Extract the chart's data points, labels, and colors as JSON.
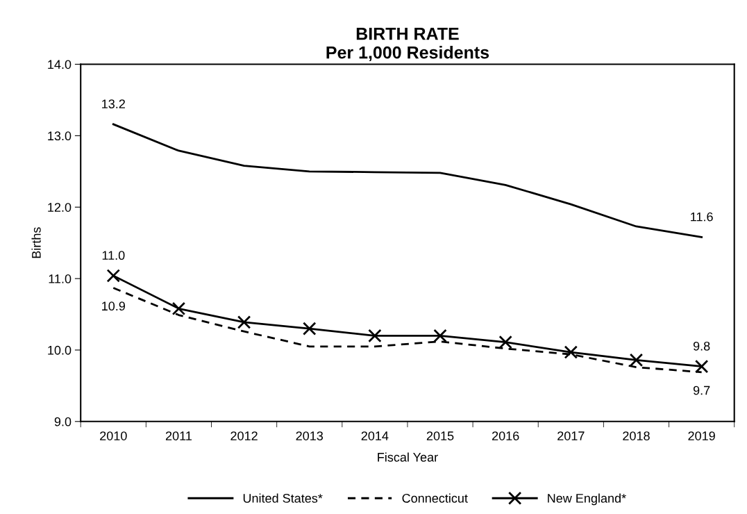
{
  "chart_data": {
    "type": "line",
    "title": "BIRTH RATE\nPer 1,000 Residents",
    "xlabel": "Fiscal Year",
    "ylabel": "Births",
    "categories": [
      "2010",
      "2011",
      "2012",
      "2013",
      "2014",
      "2015",
      "2016",
      "2017",
      "2018",
      "2019"
    ],
    "series": [
      {
        "name": "United States*",
        "color": "#000000",
        "line_style": "solid",
        "marker": "none",
        "values": [
          13.16,
          12.79,
          12.58,
          12.5,
          12.49,
          12.48,
          12.31,
          12.04,
          11.73,
          11.58
        ],
        "value_labels": [
          "13.2",
          null,
          null,
          null,
          null,
          null,
          null,
          null,
          null,
          "11.6"
        ]
      },
      {
        "name": "Connecticut",
        "color": "#000000",
        "line_style": "dashed",
        "marker": "none",
        "values": [
          10.87,
          10.49,
          10.26,
          10.05,
          10.05,
          10.12,
          10.02,
          9.94,
          9.76,
          9.69
        ],
        "value_labels": [
          "10.9",
          null,
          null,
          null,
          null,
          null,
          null,
          null,
          null,
          "9.7"
        ]
      },
      {
        "name": "New England*",
        "color": "#000000",
        "line_style": "solid",
        "marker": "cross",
        "values": [
          11.04,
          10.58,
          10.39,
          10.3,
          10.2,
          10.2,
          10.11,
          9.97,
          9.86,
          9.77
        ],
        "value_labels": [
          "11.0",
          null,
          null,
          null,
          null,
          null,
          null,
          null,
          null,
          "9.8"
        ]
      }
    ],
    "ylim": [
      9.0,
      14.0
    ],
    "yticks": [
      {
        "value": 9,
        "label": "9.0"
      },
      {
        "value": 10,
        "label": "10.0"
      },
      {
        "value": 11,
        "label": "11.0"
      },
      {
        "value": 12,
        "label": "12.0"
      },
      {
        "value": 13,
        "label": "13.0"
      },
      {
        "value": 14,
        "label": "14.0"
      }
    ],
    "grid": false,
    "legend": "bottom"
  }
}
